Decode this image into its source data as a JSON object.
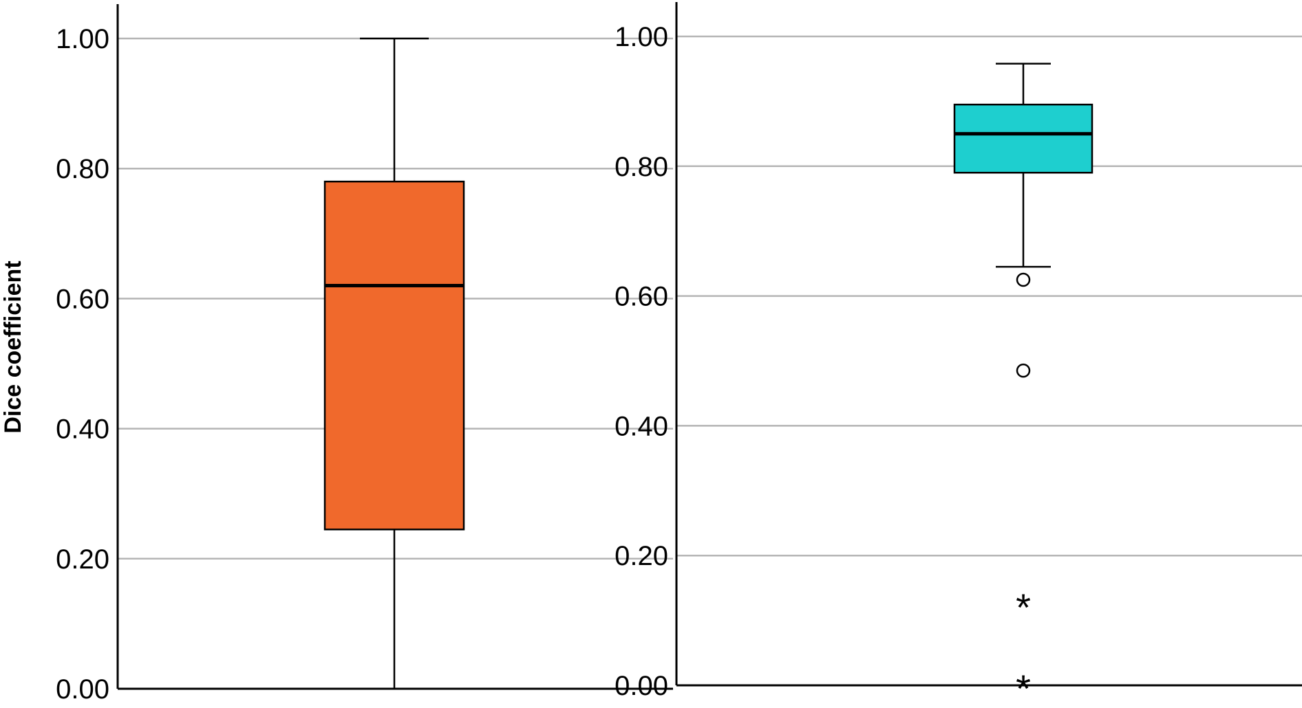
{
  "chart_data": [
    {
      "type": "box",
      "ylabel": "Dice coefficient",
      "ylim": [
        0,
        1
      ],
      "yticks": [
        "0.00",
        "0.20",
        "0.40",
        "0.60",
        "0.80",
        "1.00"
      ],
      "grid": true,
      "box": {
        "color": "#F0692C",
        "min": 0.0,
        "q1": 0.245,
        "median": 0.62,
        "q3": 0.78,
        "max": 1.0
      },
      "outliers": [],
      "extremes": []
    },
    {
      "type": "box",
      "ylabel": "",
      "ylim": [
        0,
        1
      ],
      "yticks": [
        "0.00",
        "0.20",
        "0.40",
        "0.60",
        "0.80",
        "1.00"
      ],
      "grid": true,
      "box": {
        "color": "#1ECFCF",
        "min": 0.645,
        "q1": 0.79,
        "median": 0.85,
        "q3": 0.895,
        "max": 0.958
      },
      "outliers": [
        0.625,
        0.485
      ],
      "extremes": [
        0.125,
        0.0
      ]
    }
  ]
}
